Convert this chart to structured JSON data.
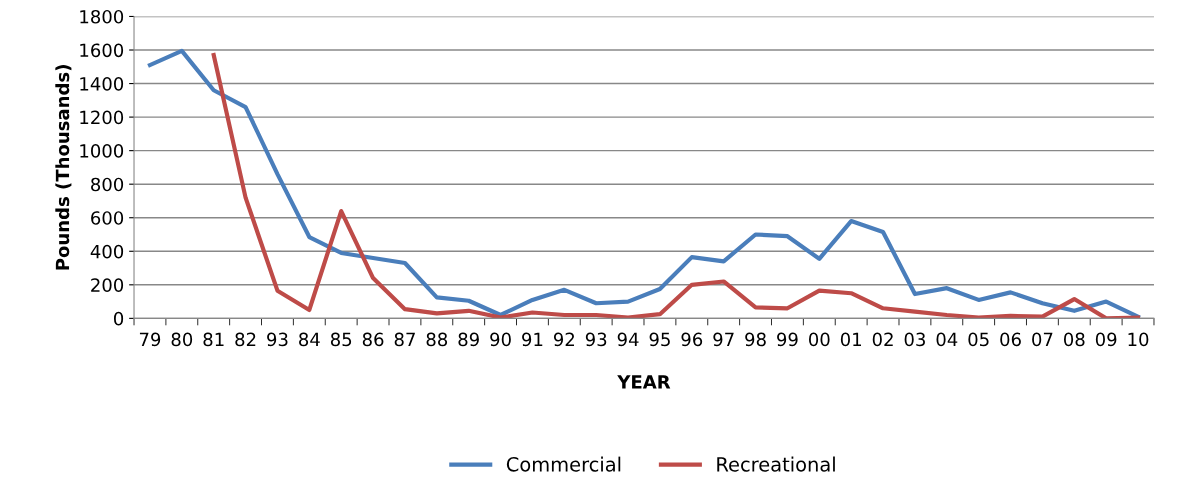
{
  "chart_data": {
    "type": "line",
    "xlabel": "YEAR",
    "ylabel": "Pounds (Thousands)",
    "categories": [
      "79",
      "80",
      "81",
      "82",
      "93",
      "84",
      "85",
      "86",
      "87",
      "88",
      "89",
      "90",
      "91",
      "92",
      "93",
      "94",
      "95",
      "96",
      "97",
      "98",
      "99",
      "00",
      "01",
      "02",
      "03",
      "04",
      "05",
      "06",
      "07",
      "08",
      "09",
      "10"
    ],
    "series": [
      {
        "name": "Commercial",
        "color": "#4a7ebb",
        "values": [
          1510,
          1595,
          1360,
          1260,
          860,
          485,
          390,
          360,
          330,
          125,
          105,
          20,
          110,
          170,
          90,
          100,
          175,
          365,
          340,
          500,
          490,
          355,
          580,
          515,
          145,
          180,
          110,
          155,
          90,
          45,
          100,
          10
        ]
      },
      {
        "name": "Recreational",
        "color": "#be4b48",
        "values": [
          null,
          null,
          1570,
          720,
          165,
          50,
          640,
          240,
          55,
          30,
          45,
          5,
          35,
          20,
          20,
          5,
          25,
          200,
          220,
          65,
          60,
          165,
          150,
          60,
          40,
          20,
          5,
          15,
          10,
          115,
          0,
          5
        ]
      }
    ],
    "ylim": [
      0,
      1800
    ],
    "yticks": [
      0,
      200,
      400,
      600,
      800,
      1000,
      1200,
      1400,
      1600,
      1800
    ],
    "grid": "y",
    "legend": "bottom",
    "marker": "none",
    "line_style": "solid"
  }
}
